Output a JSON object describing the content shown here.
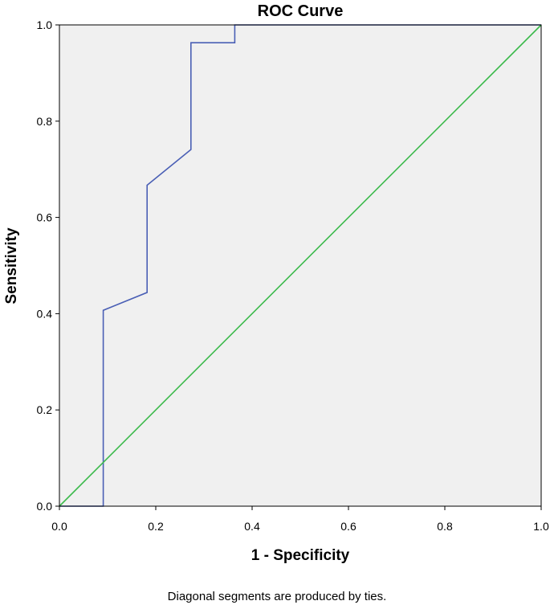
{
  "chart_data": {
    "type": "line",
    "title": "ROC Curve",
    "xlabel": "1 - Specificity",
    "ylabel": "Sensitivity",
    "xlim": [
      0.0,
      1.0
    ],
    "ylim": [
      0.0,
      1.0
    ],
    "x_ticks": [
      "0.0",
      "0.2",
      "0.4",
      "0.6",
      "0.8",
      "1.0"
    ],
    "y_ticks": [
      "0.0",
      "0.2",
      "0.4",
      "0.6",
      "0.8",
      "1.0"
    ],
    "grid": false,
    "background_color": "#f0f0f0",
    "series": [
      {
        "color": "#4a5fb5",
        "x": [
          0.0,
          0.091,
          0.091,
          0.182,
          0.182,
          0.273,
          0.273,
          0.364,
          0.364,
          1.0
        ],
        "y": [
          0.0,
          0.0,
          0.407,
          0.444,
          0.667,
          0.741,
          0.963,
          0.963,
          1.0,
          1.0
        ]
      },
      {
        "color": "#3cba4c",
        "x": [
          0.0,
          1.0
        ],
        "y": [
          0.0,
          1.0
        ]
      }
    ],
    "footnote": "Diagonal segments are produced by ties."
  }
}
